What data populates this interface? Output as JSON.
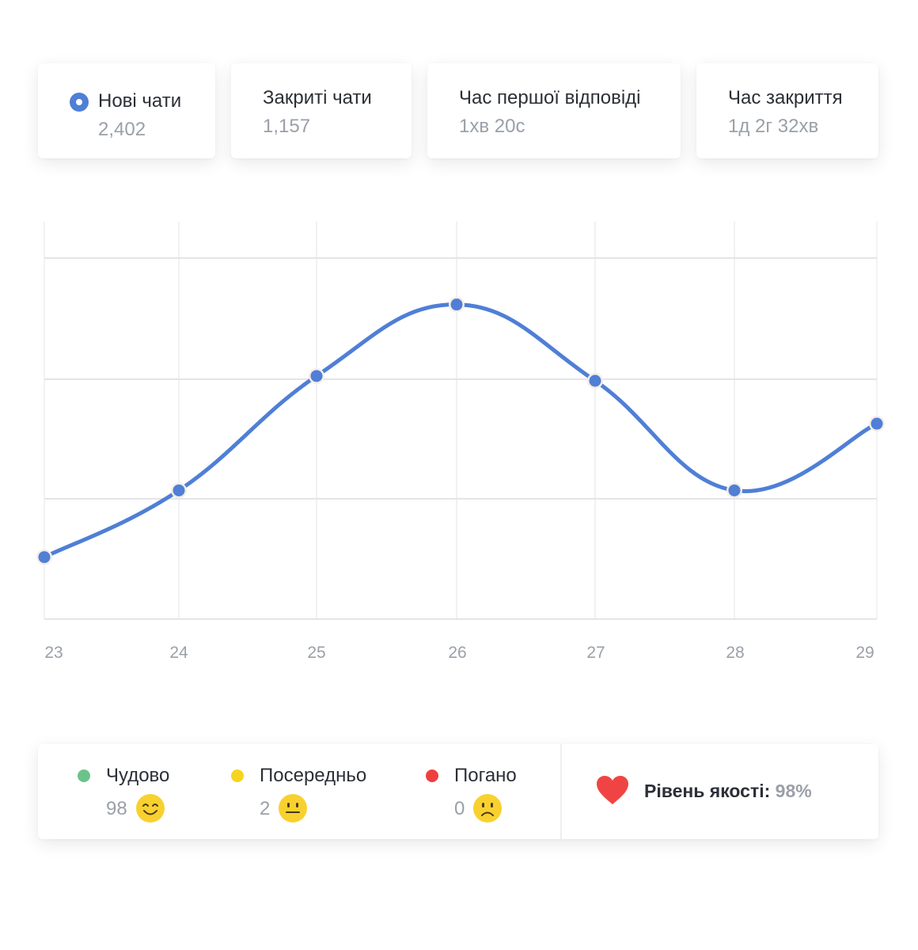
{
  "stats": [
    {
      "title": "Нові чати",
      "value": "2,402",
      "icon": "radio-selected-icon"
    },
    {
      "title": "Закриті чати",
      "value": "1,157"
    },
    {
      "title": "Час першої відповіді",
      "value": "1хв 20с"
    },
    {
      "title": "Час закриття",
      "value": "1д 2г 32хв"
    }
  ],
  "chart_data": {
    "type": "line",
    "x": [
      "23",
      "24",
      "25",
      "26",
      "27",
      "28",
      "29"
    ],
    "series": [
      {
        "values": [
          1.3,
          2.7,
          5.1,
          6.6,
          5.0,
          2.7,
          4.1
        ],
        "color": "#4f7fd6"
      }
    ],
    "ylim": [
      0,
      10
    ],
    "grid": true,
    "smooth": true
  },
  "ratings": [
    {
      "label": "Чудово",
      "count": "98",
      "color": "#6cc38a",
      "icon": "smile-emoji-icon"
    },
    {
      "label": "Посередньо",
      "count": "2",
      "color": "#f6d41f",
      "icon": "neutral-emoji-icon"
    },
    {
      "label": "Погано",
      "count": "0",
      "color": "#ef4040",
      "icon": "frown-emoji-icon"
    }
  ],
  "quality": {
    "label": "Рівень якості:",
    "value": "98%",
    "icon": "heart-icon"
  },
  "colors": {
    "accent": "#4f7fd6",
    "emoji": "#f8d12f",
    "heart": "#f04444"
  }
}
